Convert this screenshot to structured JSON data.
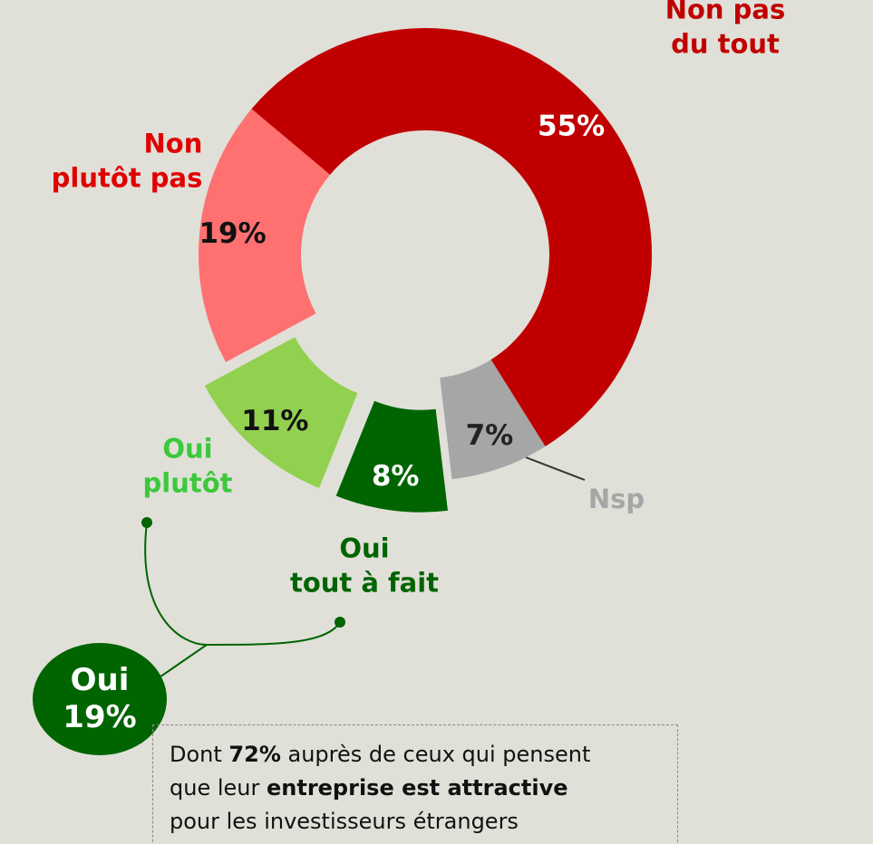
{
  "chart_data": {
    "type": "pie",
    "categories": [
      "Non pas du tout",
      "Nsp",
      "Oui\ntout à fait",
      "Oui\nplutôt",
      "Non\nplutôt pas"
    ],
    "values": [
      55,
      7,
      8,
      11,
      19
    ],
    "value_labels": [
      "55%",
      "7%",
      "8%",
      "11%",
      "19%"
    ],
    "colors": [
      "#c00000",
      "#a6a6a6",
      "#006400",
      "#92d050",
      "#ff7070"
    ],
    "label_colors": [
      "#c00000",
      "#a6a6a6",
      "#006400",
      "#3cc83c",
      "#e00000"
    ],
    "value_label_colors": [
      "#ffffff",
      "#222222",
      "#ffffff",
      "#111111",
      "#111111"
    ],
    "donut": true,
    "explode": [
      false,
      false,
      true,
      true,
      false
    ],
    "annotations": {
      "total_label": "Oui",
      "total_value": "19%",
      "note": [
        [
          {
            "text": "Dont ",
            "bold": false
          },
          {
            "text": "72%",
            "bold": true
          },
          {
            "text": " auprès de ceux qui pensent",
            "bold": false
          }
        ],
        [
          {
            "text": "que leur ",
            "bold": false
          },
          {
            "text": "entreprise est attractive",
            "bold": true
          }
        ],
        [
          {
            "text": "pour les investisseurs étrangers",
            "bold": false
          }
        ]
      ]
    }
  }
}
